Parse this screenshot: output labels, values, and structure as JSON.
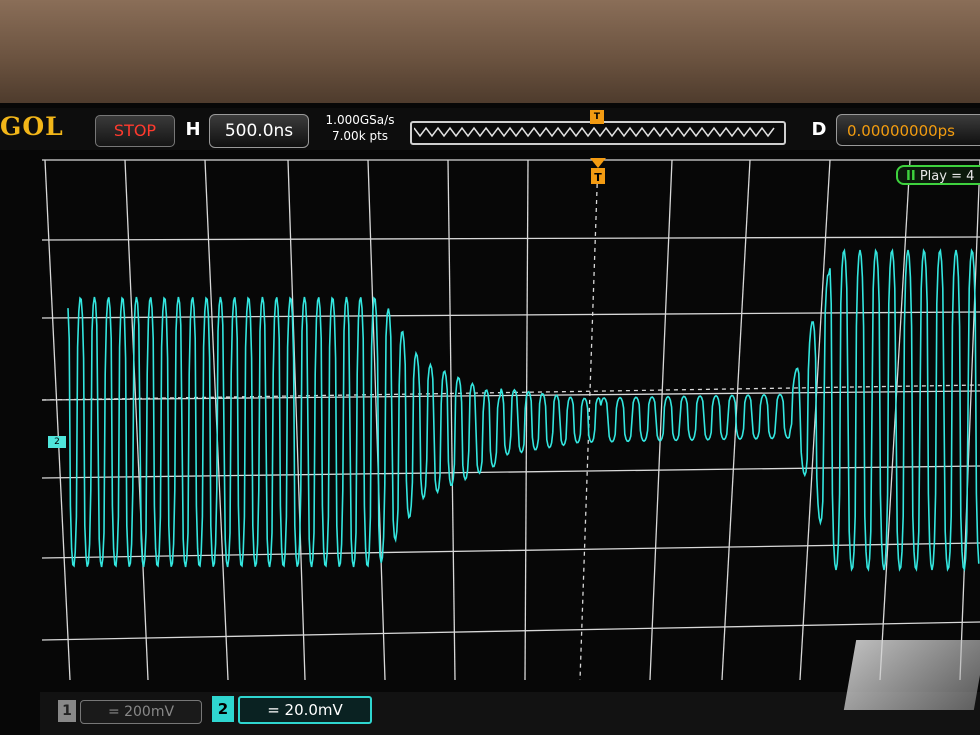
{
  "scope": {
    "brand": "GOL",
    "run_state": "STOP",
    "horizontal_label": "H",
    "timebase": "500.0ns",
    "sample_rate": "1.000GSa/s",
    "memory_depth": "7.00k pts",
    "trigger_marker": "T",
    "delay_label": "D",
    "delay_value": "0.00000000ps",
    "play_status": "Play = 4",
    "ch1_label": "1",
    "ch1_scale": "= 200mV",
    "ch2_label": "2",
    "ch2_scale": "= 20.0mV",
    "ch_ground_marker": "2"
  },
  "colors": {
    "trace": "#33e6df",
    "trigger": "#f39b12",
    "stop": "#ff3a2e",
    "grid": "#d8d8d8"
  }
}
